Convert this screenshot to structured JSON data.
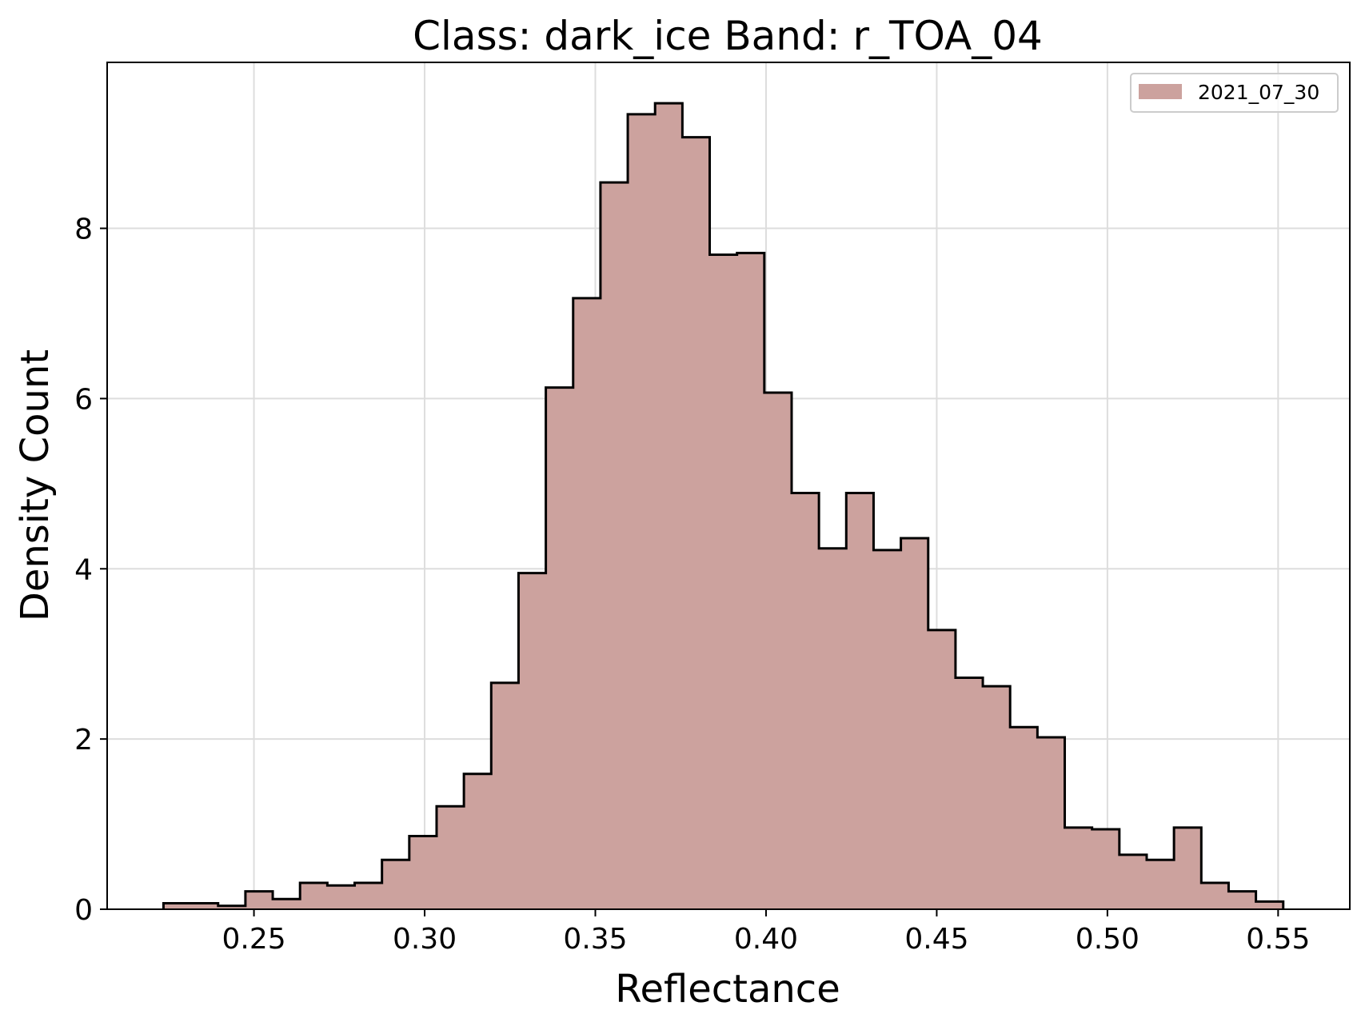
{
  "chart_data": {
    "type": "bar",
    "title": "Class: dark_ice Band: r_TOA_04",
    "xlabel": "Reflectance",
    "ylabel": "Density Count",
    "xlim": [
      0.207,
      0.571
    ],
    "ylim": [
      0,
      9.95
    ],
    "xticks": [
      0.25,
      0.3,
      0.35,
      0.4,
      0.45,
      0.5,
      0.55
    ],
    "xtick_labels": [
      "0.25",
      "0.30",
      "0.35",
      "0.40",
      "0.45",
      "0.50",
      "0.55"
    ],
    "yticks": [
      0,
      2,
      4,
      6,
      8
    ],
    "ytick_labels": [
      "0",
      "2",
      "4",
      "6",
      "8"
    ],
    "grid": true,
    "legend_position": "top-right",
    "fill_color": "#cca29e",
    "edge_color": "#000000",
    "bin_edges": [
      0.2235,
      0.2315,
      0.2395,
      0.2475,
      0.2555,
      0.2635,
      0.2715,
      0.2795,
      0.2875,
      0.2955,
      0.3035,
      0.3115,
      0.3195,
      0.3275,
      0.3355,
      0.3435,
      0.3515,
      0.3595,
      0.3675,
      0.3755,
      0.3835,
      0.3915,
      0.3995,
      0.4075,
      0.4155,
      0.4235,
      0.4315,
      0.4395,
      0.4475,
      0.4555,
      0.4635,
      0.4715,
      0.4795,
      0.4875,
      0.4955,
      0.5035,
      0.5115,
      0.5195,
      0.5275,
      0.5355,
      0.5435,
      0.5515
    ],
    "series": [
      {
        "name": "2021_07_30",
        "values": [
          0.07,
          0.07,
          0.04,
          0.21,
          0.12,
          0.31,
          0.28,
          0.31,
          0.58,
          0.86,
          1.21,
          1.59,
          2.66,
          3.95,
          6.13,
          7.18,
          8.54,
          9.34,
          9.47,
          9.07,
          7.69,
          7.71,
          6.07,
          4.89,
          4.24,
          4.89,
          4.22,
          4.36,
          3.28,
          2.72,
          2.62,
          2.14,
          2.02,
          0.96,
          0.94,
          0.64,
          0.58,
          0.96,
          0.31,
          0.21,
          0.09
        ]
      }
    ]
  }
}
